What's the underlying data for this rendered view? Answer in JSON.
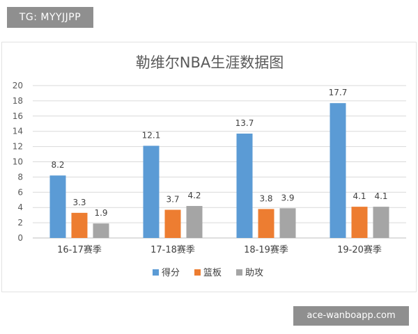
{
  "watermark_top": "TG: MYYJJPP",
  "watermark_bottom": "ace-wanboapp.com",
  "chart_data": {
    "type": "bar",
    "title": "勒维尔NBA生涯数据图",
    "categories": [
      "16-17赛季",
      "17-18赛季",
      "18-19赛季",
      "19-20赛季"
    ],
    "series": [
      {
        "name": "得分",
        "values": [
          8.2,
          12.1,
          13.7,
          17.7
        ],
        "color": "#5b9bd5"
      },
      {
        "name": "篮板",
        "values": [
          3.3,
          3.7,
          3.8,
          4.1
        ],
        "color": "#ed7d31"
      },
      {
        "name": "助攻",
        "values": [
          1.9,
          4.2,
          3.9,
          4.1
        ],
        "color": "#a5a5a5"
      }
    ],
    "yticks": [
      0,
      2,
      4,
      6,
      8,
      10,
      12,
      14,
      16,
      18,
      20
    ],
    "ylim": [
      0,
      20
    ],
    "grid": true,
    "legend_position": "bottom"
  }
}
